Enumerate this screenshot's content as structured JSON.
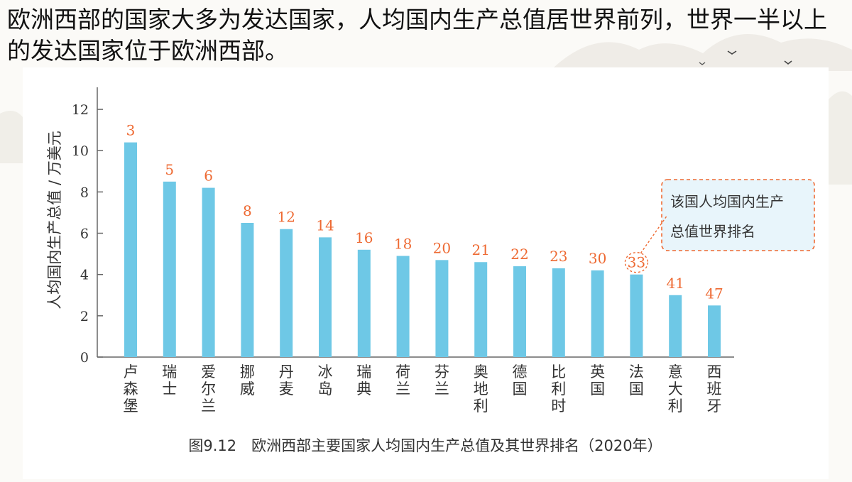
{
  "heading": "欧洲西部的国家大多为发达国家，人均国内生产总值居世界前列，世界一半以上的发达国家位于欧洲西部。",
  "colors": {
    "bar": "#6ec8e6",
    "rank": "#ee6a33",
    "callout_border": "#ee6a33",
    "callout_fill": "#e8f5fb"
  },
  "chart_data": {
    "type": "bar",
    "ylabel": "人均国内生产总值 / 万美元",
    "ylim": [
      0,
      13
    ],
    "yticks": [
      0,
      2,
      4,
      6,
      8,
      10,
      12
    ],
    "categories": [
      "卢森堡",
      "瑞士",
      "爱尔兰",
      "挪威",
      "丹麦",
      "冰岛",
      "瑞典",
      "荷兰",
      "芬兰",
      "奥地利",
      "德国",
      "比利时",
      "英国",
      "法国",
      "意大利",
      "西班牙"
    ],
    "values": [
      10.4,
      8.5,
      8.2,
      6.5,
      6.2,
      5.8,
      5.2,
      4.9,
      4.7,
      4.6,
      4.4,
      4.3,
      4.2,
      4.0,
      3.0,
      2.5
    ],
    "rank_labels": [
      "3",
      "5",
      "6",
      "8",
      "12",
      "14",
      "16",
      "18",
      "20",
      "21",
      "22",
      "23",
      "30",
      "33",
      "41",
      "47"
    ],
    "highlighted_category": "法国",
    "annotation": {
      "line1": "该国人均国内生产",
      "line2": "总值世界排名"
    },
    "caption": "图9.12　欧洲西部主要国家人均国内生产总值及其世界排名（2020年）",
    "grid": false,
    "legend": "none"
  }
}
